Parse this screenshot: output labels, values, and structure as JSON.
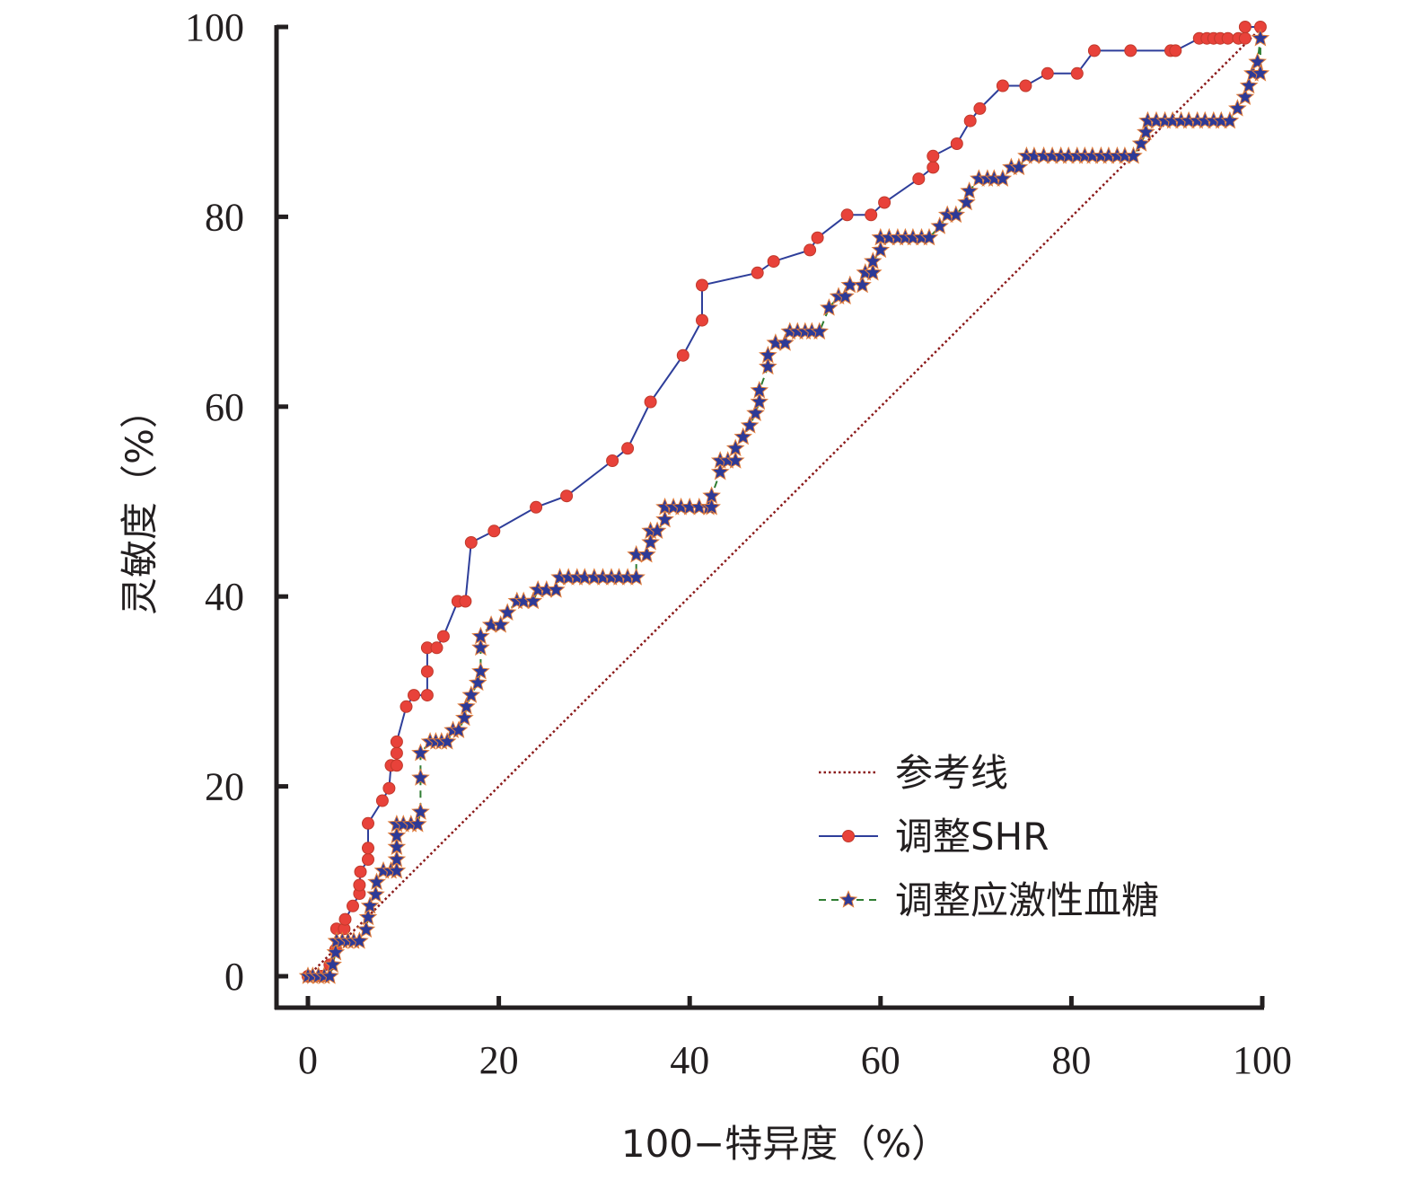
{
  "chart_data": {
    "type": "line",
    "title": "",
    "xlabel": "100−特异度（%）",
    "ylabel": "灵敏度（%）",
    "xlim": [
      0,
      100
    ],
    "ylim": [
      0,
      100
    ],
    "x_ticks": [
      "0",
      "20",
      "40",
      "60",
      "80",
      "100"
    ],
    "y_ticks": [
      "0",
      "20",
      "40",
      "60",
      "80",
      "100"
    ],
    "grid": false,
    "legend_position": "bottom-right",
    "series": [
      {
        "name": "参考线",
        "style": "dotted",
        "color": "#8b1a1a",
        "marker": "none",
        "points": [
          [
            0,
            0
          ],
          [
            100,
            100
          ]
        ]
      },
      {
        "name": "调整SHR",
        "style": "solid",
        "color": "#2e3e9a",
        "marker": "circle",
        "marker_color": "#e8423a",
        "points": [
          [
            0,
            0
          ],
          [
            1.4,
            0
          ],
          [
            2.3,
            1.2
          ],
          [
            2.9,
            2.8
          ],
          [
            3.0,
            5.0
          ],
          [
            3.8,
            5.0
          ],
          [
            3.9,
            6.0
          ],
          [
            4.7,
            7.4
          ],
          [
            5.4,
            8.7
          ],
          [
            5.4,
            9.6
          ],
          [
            5.5,
            11.0
          ],
          [
            6.3,
            12.3
          ],
          [
            6.3,
            13.5
          ],
          [
            6.3,
            16.1
          ],
          [
            7.8,
            18.5
          ],
          [
            8.5,
            19.8
          ],
          [
            8.7,
            22.2
          ],
          [
            9.3,
            22.2
          ],
          [
            9.3,
            23.5
          ],
          [
            9.3,
            24.7
          ],
          [
            10.3,
            28.4
          ],
          [
            11.1,
            29.6
          ],
          [
            12.5,
            29.6
          ],
          [
            12.5,
            32.1
          ],
          [
            12.5,
            34.6
          ],
          [
            13.5,
            34.6
          ],
          [
            14.2,
            35.8
          ],
          [
            15.7,
            39.5
          ],
          [
            16.5,
            39.5
          ],
          [
            17.1,
            45.7
          ],
          [
            19.5,
            46.9
          ],
          [
            23.9,
            49.4
          ],
          [
            27.1,
            50.6
          ],
          [
            31.9,
            54.3
          ],
          [
            33.5,
            55.6
          ],
          [
            35.9,
            60.5
          ],
          [
            39.3,
            65.4
          ],
          [
            41.3,
            69.1
          ],
          [
            41.3,
            72.8
          ],
          [
            47.1,
            74.1
          ],
          [
            48.8,
            75.3
          ],
          [
            52.6,
            76.5
          ],
          [
            53.4,
            77.8
          ],
          [
            56.5,
            80.2
          ],
          [
            59.0,
            80.2
          ],
          [
            60.4,
            81.5
          ],
          [
            64.0,
            84.0
          ],
          [
            65.5,
            85.2
          ],
          [
            65.5,
            86.4
          ],
          [
            68.0,
            87.7
          ],
          [
            69.4,
            90.1
          ],
          [
            70.4,
            91.4
          ],
          [
            72.8,
            93.8
          ],
          [
            75.2,
            93.8
          ],
          [
            77.5,
            95.1
          ],
          [
            80.6,
            95.1
          ],
          [
            82.4,
            97.5
          ],
          [
            86.2,
            97.5
          ],
          [
            90.4,
            97.5
          ],
          [
            90.9,
            97.5
          ],
          [
            93.4,
            98.8
          ],
          [
            94.2,
            98.8
          ],
          [
            94.9,
            98.8
          ],
          [
            95.6,
            98.8
          ],
          [
            96.4,
            98.8
          ],
          [
            97.5,
            98.8
          ],
          [
            98.2,
            98.8
          ],
          [
            98.2,
            100
          ],
          [
            99.8,
            100
          ]
        ]
      },
      {
        "name": "调整应激性血糖",
        "style": "dashed",
        "color": "#2f7d32",
        "marker": "star",
        "marker_color": "#2d3a97",
        "points": [
          [
            0,
            0
          ],
          [
            0.5,
            0
          ],
          [
            1.1,
            0
          ],
          [
            1.7,
            0
          ],
          [
            2.3,
            0
          ],
          [
            2.6,
            1.2
          ],
          [
            2.9,
            2.5
          ],
          [
            3.0,
            3.7
          ],
          [
            3.6,
            3.7
          ],
          [
            4.2,
            3.7
          ],
          [
            4.8,
            3.7
          ],
          [
            5.4,
            3.7
          ],
          [
            6.1,
            4.9
          ],
          [
            6.3,
            6.2
          ],
          [
            6.5,
            7.4
          ],
          [
            7.1,
            8.6
          ],
          [
            7.2,
            9.9
          ],
          [
            7.9,
            11.1
          ],
          [
            8.7,
            11.1
          ],
          [
            9.3,
            11.1
          ],
          [
            9.3,
            12.3
          ],
          [
            9.3,
            13.6
          ],
          [
            9.3,
            14.8
          ],
          [
            9.3,
            16.0
          ],
          [
            10.0,
            16.0
          ],
          [
            10.8,
            16.0
          ],
          [
            11.5,
            16.0
          ],
          [
            11.8,
            17.3
          ],
          [
            11.8,
            20.9
          ],
          [
            11.8,
            23.5
          ],
          [
            12.8,
            24.7
          ],
          [
            13.4,
            24.7
          ],
          [
            14.0,
            24.7
          ],
          [
            14.6,
            24.7
          ],
          [
            15.2,
            25.9
          ],
          [
            15.8,
            25.9
          ],
          [
            16.4,
            27.2
          ],
          [
            16.6,
            28.4
          ],
          [
            17.1,
            29.6
          ],
          [
            17.8,
            30.9
          ],
          [
            18.1,
            32.1
          ],
          [
            18.1,
            34.6
          ],
          [
            18.1,
            35.8
          ],
          [
            19.2,
            37.0
          ],
          [
            20.2,
            37.0
          ],
          [
            20.9,
            38.3
          ],
          [
            21.9,
            39.5
          ],
          [
            22.6,
            39.5
          ],
          [
            23.6,
            39.5
          ],
          [
            24.1,
            40.7
          ],
          [
            25.0,
            40.7
          ],
          [
            26.0,
            40.7
          ],
          [
            26.4,
            42.0
          ],
          [
            27.3,
            42.0
          ],
          [
            28.2,
            42.0
          ],
          [
            29.0,
            42.0
          ],
          [
            30.0,
            42.0
          ],
          [
            30.9,
            42.0
          ],
          [
            31.8,
            42.0
          ],
          [
            32.6,
            42.0
          ],
          [
            33.5,
            42.0
          ],
          [
            34.4,
            42.0
          ],
          [
            34.4,
            44.4
          ],
          [
            35.5,
            44.4
          ],
          [
            35.9,
            45.7
          ],
          [
            35.9,
            46.9
          ],
          [
            36.6,
            46.9
          ],
          [
            37.4,
            48.1
          ],
          [
            37.4,
            49.4
          ],
          [
            38.3,
            49.4
          ],
          [
            39.1,
            49.4
          ],
          [
            40.0,
            49.4
          ],
          [
            41.0,
            49.4
          ],
          [
            42.0,
            49.4
          ],
          [
            42.3,
            49.4
          ],
          [
            42.3,
            50.6
          ],
          [
            43.2,
            53.1
          ],
          [
            43.2,
            54.3
          ],
          [
            44.0,
            54.3
          ],
          [
            44.8,
            54.3
          ],
          [
            44.8,
            55.6
          ],
          [
            45.6,
            56.8
          ],
          [
            46.3,
            58.0
          ],
          [
            46.9,
            59.3
          ],
          [
            47.3,
            60.5
          ],
          [
            47.3,
            61.7
          ],
          [
            48.2,
            64.2
          ],
          [
            48.2,
            65.4
          ],
          [
            49.0,
            66.7
          ],
          [
            50.0,
            66.7
          ],
          [
            50.5,
            67.9
          ],
          [
            51.3,
            67.9
          ],
          [
            52.1,
            67.9
          ],
          [
            52.8,
            67.9
          ],
          [
            53.6,
            67.9
          ],
          [
            54.6,
            70.4
          ],
          [
            55.6,
            71.6
          ],
          [
            56.3,
            71.6
          ],
          [
            56.8,
            72.8
          ],
          [
            58.1,
            72.8
          ],
          [
            58.4,
            74.1
          ],
          [
            59.2,
            74.1
          ],
          [
            59.2,
            75.3
          ],
          [
            60.0,
            76.5
          ],
          [
            60.0,
            77.8
          ],
          [
            60.9,
            77.8
          ],
          [
            61.8,
            77.8
          ],
          [
            62.6,
            77.8
          ],
          [
            63.4,
            77.8
          ],
          [
            64.3,
            77.8
          ],
          [
            65.1,
            77.8
          ],
          [
            66.2,
            79.0
          ],
          [
            67.0,
            80.2
          ],
          [
            67.9,
            80.2
          ],
          [
            69.0,
            81.5
          ],
          [
            69.3,
            82.7
          ],
          [
            70.3,
            84.0
          ],
          [
            71.2,
            84.0
          ],
          [
            71.9,
            84.0
          ],
          [
            72.8,
            84.0
          ],
          [
            73.7,
            85.2
          ],
          [
            74.5,
            85.2
          ],
          [
            75.3,
            86.4
          ],
          [
            76.1,
            86.4
          ],
          [
            77.1,
            86.4
          ],
          [
            78.0,
            86.4
          ],
          [
            78.9,
            86.4
          ],
          [
            79.7,
            86.4
          ],
          [
            80.6,
            86.4
          ],
          [
            81.4,
            86.4
          ],
          [
            82.2,
            86.4
          ],
          [
            83.1,
            86.4
          ],
          [
            83.9,
            86.4
          ],
          [
            84.8,
            86.4
          ],
          [
            85.6,
            86.4
          ],
          [
            86.5,
            86.4
          ],
          [
            87.3,
            87.7
          ],
          [
            87.8,
            88.9
          ],
          [
            88.0,
            90.1
          ],
          [
            88.9,
            90.1
          ],
          [
            89.8,
            90.1
          ],
          [
            90.6,
            90.1
          ],
          [
            91.5,
            90.1
          ],
          [
            92.3,
            90.1
          ],
          [
            93.2,
            90.1
          ],
          [
            94.0,
            90.1
          ],
          [
            94.9,
            90.1
          ],
          [
            95.7,
            90.1
          ],
          [
            96.6,
            90.1
          ],
          [
            97.4,
            91.4
          ],
          [
            98.2,
            92.6
          ],
          [
            98.6,
            93.8
          ],
          [
            99.0,
            95.1
          ],
          [
            99.5,
            96.3
          ],
          [
            99.8,
            98.8
          ],
          [
            99.8,
            95.1
          ]
        ]
      }
    ]
  }
}
